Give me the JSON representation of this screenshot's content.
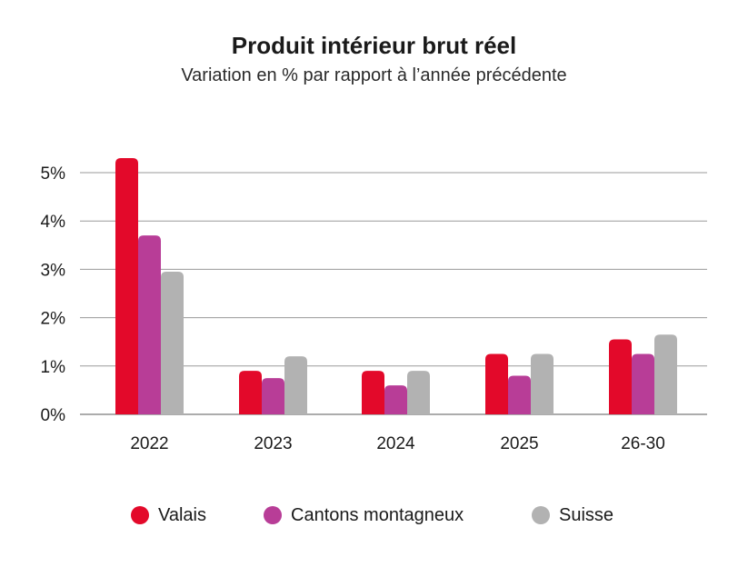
{
  "chart_data": {
    "type": "bar",
    "title": "Produit intérieur brut réel",
    "subtitle": "Variation en % par rapport à l’année précédente",
    "categories": [
      "2022",
      "2023",
      "2024",
      "2025",
      "26-30"
    ],
    "series": [
      {
        "name": "Valais",
        "values": [
          5.3,
          0.9,
          0.9,
          1.25,
          1.55
        ],
        "color": "#e3092a"
      },
      {
        "name": "Cantons montagneux",
        "values": [
          3.7,
          0.75,
          0.6,
          0.8,
          1.25
        ],
        "color": "#b83d97"
      },
      {
        "name": "Suisse",
        "values": [
          2.95,
          1.2,
          0.9,
          1.25,
          1.65
        ],
        "color": "#b2b2b2"
      }
    ],
    "yticks": [
      "0%",
      "1%",
      "2%",
      "3%",
      "4%",
      "5%"
    ],
    "ylim": [
      0,
      5
    ],
    "grid": true,
    "legend_position": "bottom"
  }
}
